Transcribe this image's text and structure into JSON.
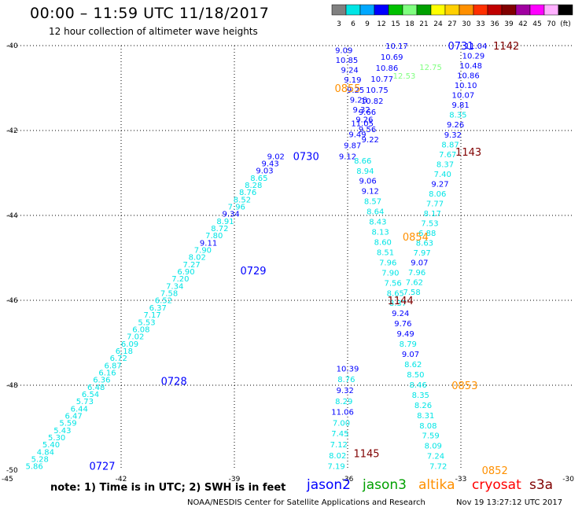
{
  "header": {
    "title": "00:00 – 11:59 UTC 11/18/2017",
    "subtitle": "12 hour collection of altimeter wave heights"
  },
  "colorbar": {
    "labels": [
      "3",
      "6",
      "9",
      "12",
      "15",
      "18",
      "21",
      "24",
      "27",
      "30",
      "33",
      "36",
      "39",
      "42",
      "45",
      "70",
      "(ft)"
    ],
    "colors": [
      "#808080",
      "#00e5e5",
      "#00a8ff",
      "#0000ff",
      "#00c000",
      "#80ff80",
      "#00a000",
      "#ffff00",
      "#ffd000",
      "#ff9000",
      "#ff3000",
      "#c00000",
      "#800000",
      "#a000a0",
      "#ff00ff",
      "#ffb0ff",
      "#000000"
    ]
  },
  "note": "note: 1) Time is in UTC; 2) SWH is in feet",
  "legend": [
    {
      "name": "jason2",
      "color": "#0000ff"
    },
    {
      "name": "jason3",
      "color": "#00a000"
    },
    {
      "name": "altika",
      "color": "#ff9000"
    },
    {
      "name": "cryosat",
      "color": "#ff0000"
    },
    {
      "name": "s3a",
      "color": "#800000"
    }
  ],
  "footer": {
    "left": "NOAA/NESDIS Center for Satellite Applications and Research",
    "right": "Nov 19 13:27:12 UTC 2017"
  },
  "chart_data": {
    "type": "scatter",
    "xlim": [
      -45,
      -30
    ],
    "ylim": [
      -50,
      -40
    ],
    "x_ticks": [
      -45,
      -42,
      -39,
      -36,
      -33,
      -30
    ],
    "y_ticks": [
      -40,
      -42,
      -44,
      -46,
      -48,
      -50
    ],
    "grid": true,
    "colors": {
      "lo": "#00e5e5",
      "hi": "#0000ff",
      "j3lo": "#80ff80",
      "j3hi": "#00c000"
    },
    "passes": [
      {
        "satellite": "jason2",
        "start": [
          -44.3,
          -49.9
        ],
        "end": [
          -37.9,
          -42.6
        ],
        "labels": [
          {
            "x": -42.5,
            "y": -49.9,
            "text": "0727"
          },
          {
            "x": -40.6,
            "y": -47.9,
            "text": "0728"
          },
          {
            "x": -38.5,
            "y": -45.3,
            "text": "0729"
          },
          {
            "x": -37.1,
            "y": -42.6,
            "text": "0730"
          }
        ],
        "values": [
          5.86,
          5.28,
          4.84,
          5.4,
          5.3,
          5.43,
          5.59,
          6.47,
          6.44,
          5.73,
          6.54,
          6.48,
          6.36,
          6.16,
          6.87,
          6.72,
          6.18,
          6.09,
          7.02,
          6.08,
          5.53,
          7.17,
          6.37,
          6.52,
          7.58,
          7.34,
          7.2,
          6.9,
          7.27,
          8.02,
          7.9,
          9.11,
          7.8,
          8.72,
          8.91,
          9.34,
          7.96,
          8.52,
          8.76,
          8.28,
          8.65,
          9.03,
          9.43,
          9.02
        ]
      },
      {
        "satellite": "jason2",
        "start": [
          -36.1,
          -40.1
        ],
        "end": [
          -35.4,
          -42.2
        ],
        "labels": [],
        "values": [
          9.09,
          10.85,
          9.24,
          9.19,
          9.25,
          9.28,
          9.32,
          9.26,
          9.56,
          9.22
        ]
      },
      {
        "satellite": "jason2",
        "start": [
          -34.7,
          -40.0
        ],
        "end": [
          -36.0,
          -42.6
        ],
        "labels": [
          {
            "x": -33.0,
            "y": -40.0,
            "text": "0731"
          }
        ],
        "values": [
          10.17,
          10.69,
          10.86,
          10.77,
          10.75,
          10.82,
          9.66,
          11.05,
          9.49,
          9.87,
          9.12
        ]
      },
      {
        "satellite": "jason2",
        "start": [
          -35.6,
          -42.7
        ],
        "end": [
          -33.6,
          -49.9
        ],
        "labels": [],
        "values": [
          8.66,
          8.94,
          9.06,
          9.12,
          8.57,
          8.64,
          8.43,
          8.13,
          8.6,
          8.51,
          7.96,
          7.9,
          7.56,
          8.65,
          8.37,
          9.24,
          9.76,
          9.49,
          8.79,
          9.07,
          8.62,
          8.5,
          8.46,
          8.35,
          8.26,
          8.31,
          8.08,
          7.59,
          8.09,
          7.24,
          7.72
        ]
      },
      {
        "satellite": "jason2",
        "start": [
          -36.0,
          -47.6
        ],
        "end": [
          -36.3,
          -49.9
        ],
        "labels": [],
        "values": [
          10.39,
          8.76,
          9.32,
          8.29,
          11.06,
          7.0,
          7.45,
          7.12,
          8.02,
          7.19
        ]
      },
      {
        "satellite": "jason2",
        "start": [
          -32.6,
          -40.0
        ],
        "end": [
          -34.3,
          -45.8
        ],
        "labels": [],
        "values": [
          11.04,
          10.29,
          10.48,
          10.86,
          10.1,
          10.07,
          9.81,
          8.35,
          9.26,
          9.32,
          8.87,
          7.67,
          8.37,
          7.4,
          9.27,
          8.06,
          7.77,
          8.17,
          7.53,
          6.88,
          8.63,
          7.97,
          9.07,
          7.96,
          7.62,
          7.58
        ]
      },
      {
        "satellite": "jason3",
        "start": [
          -33.8,
          -40.5
        ],
        "end": [
          -34.5,
          -40.7
        ],
        "labels": [],
        "values": [
          12.75,
          12.53
        ]
      },
      {
        "satellite": "altika",
        "start": [
          -35.9,
          -41.0
        ],
        "end": [
          -35.9,
          -41.0
        ],
        "labels": [
          {
            "x": -36.0,
            "y": -41.0,
            "text": "0855"
          },
          {
            "x": -34.2,
            "y": -44.5,
            "text": "0854"
          },
          {
            "x": -32.9,
            "y": -48.0,
            "text": "0853"
          },
          {
            "x": -32.1,
            "y": -50.0,
            "text": "0852"
          }
        ],
        "values": []
      },
      {
        "satellite": "s3a",
        "start": [
          -32.6,
          -40.0
        ],
        "end": [
          -32.6,
          -40.0
        ],
        "labels": [
          {
            "x": -31.8,
            "y": -40.0,
            "text": "1142"
          },
          {
            "x": -32.8,
            "y": -42.5,
            "text": "1143"
          },
          {
            "x": -34.6,
            "y": -46.0,
            "text": "1144"
          },
          {
            "x": -35.5,
            "y": -49.6,
            "text": "1145"
          }
        ],
        "values": []
      }
    ]
  }
}
